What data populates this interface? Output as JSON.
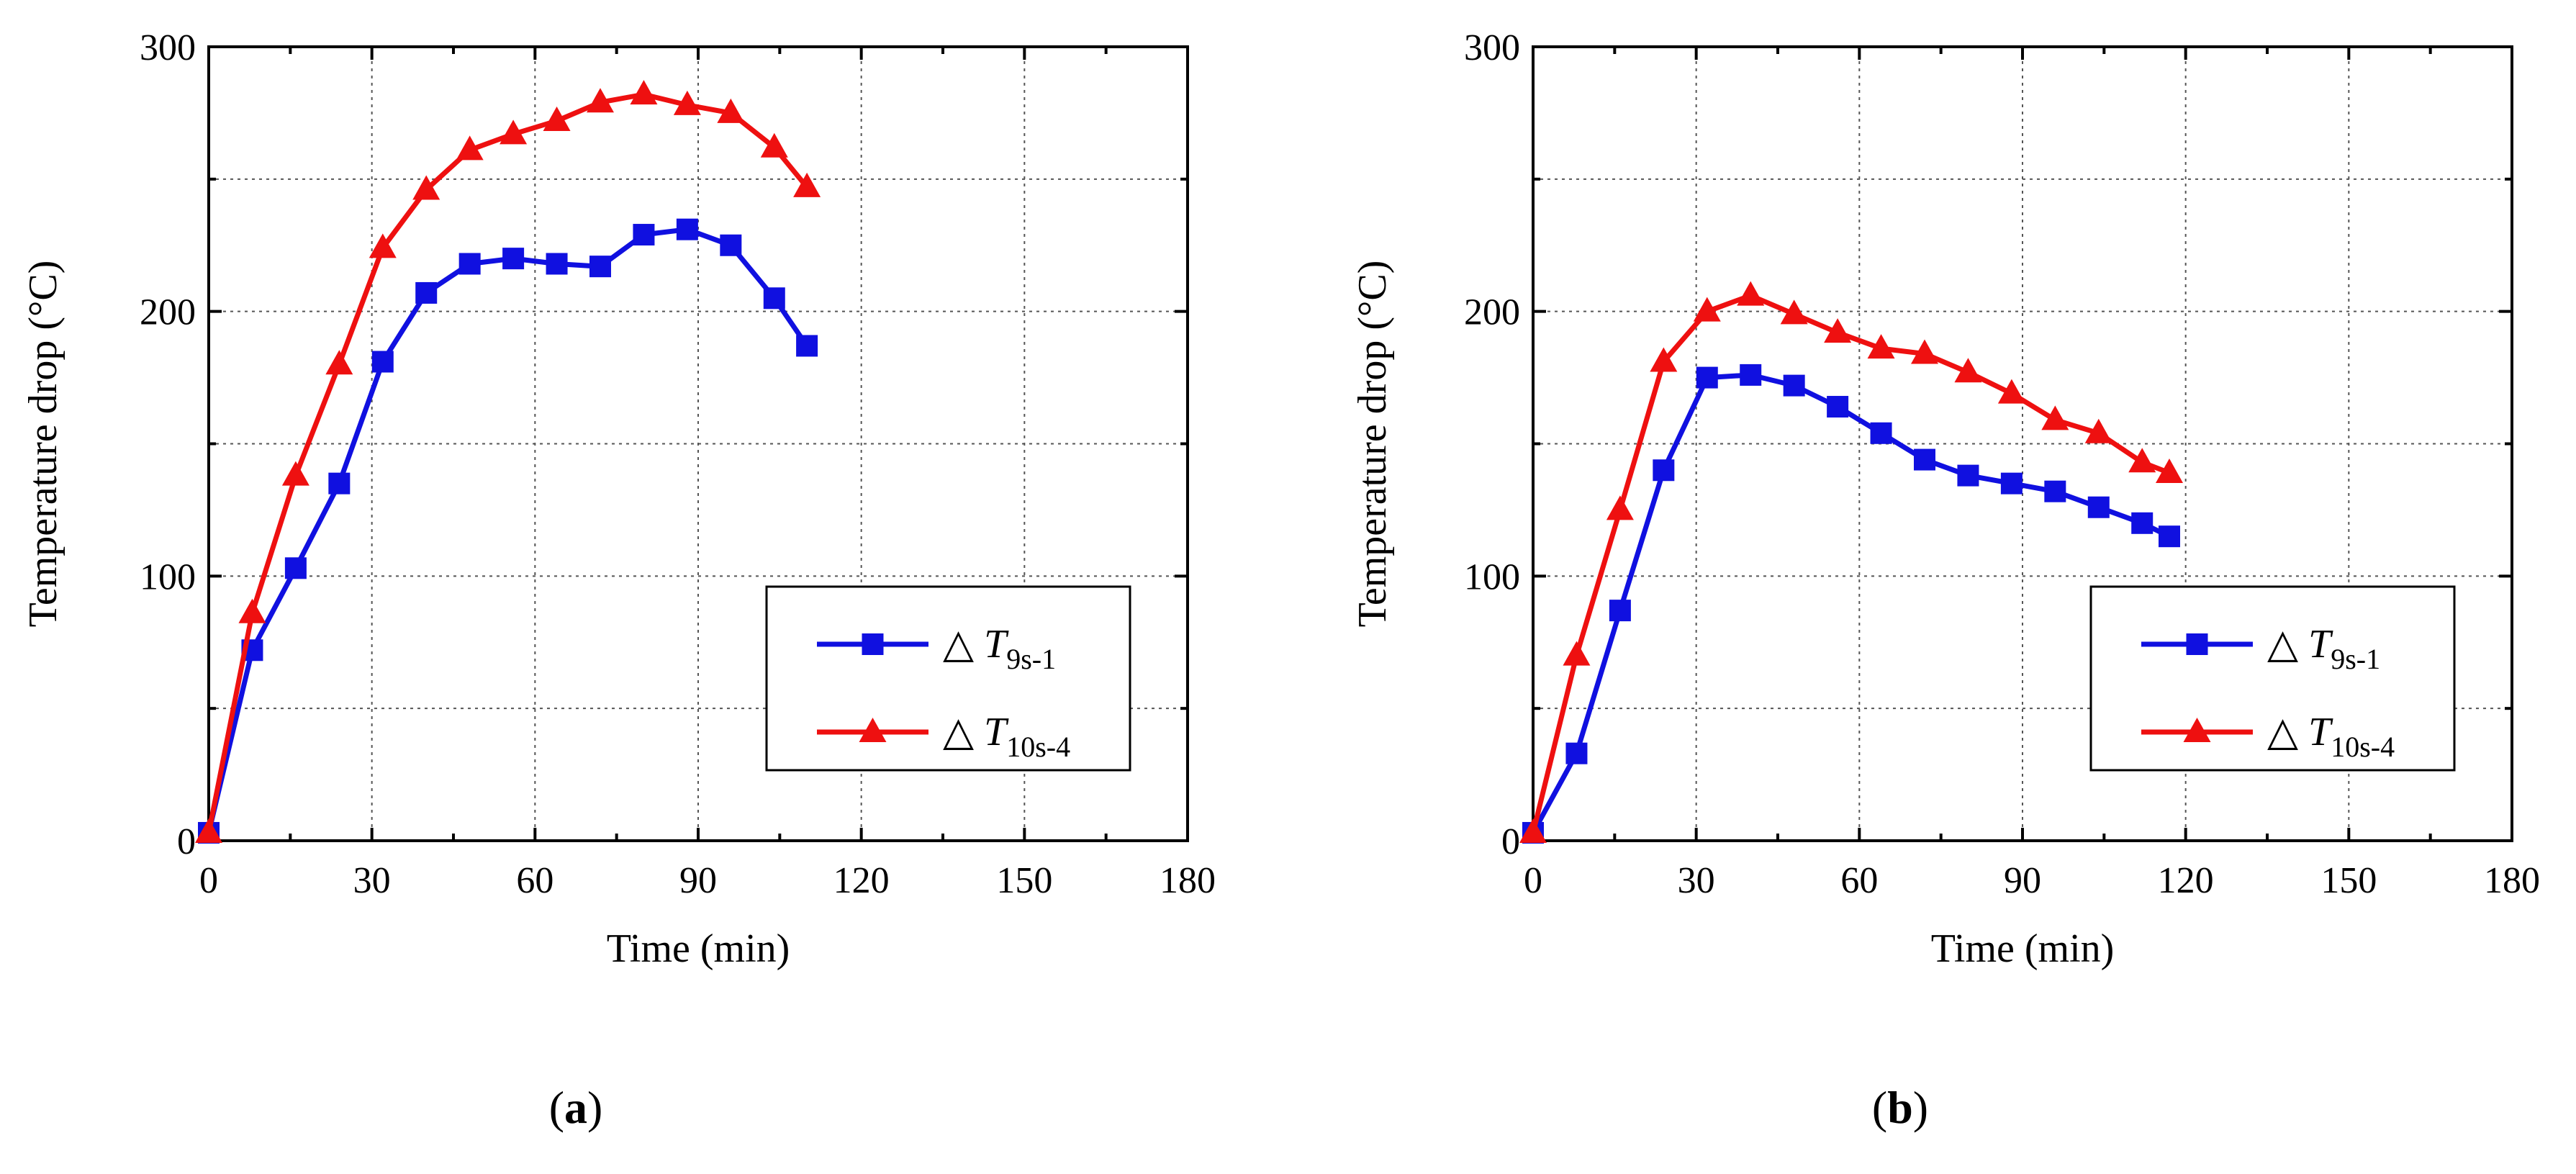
{
  "chart_data": [
    {
      "panel": "(a)",
      "panel_letter": "a",
      "type": "line",
      "title": "",
      "xlabel": "Time (min)",
      "ylabel": "Temperature drop (°C)",
      "xlim": [
        0,
        180
      ],
      "ylim": [
        0,
        300
      ],
      "xticks": [
        0,
        30,
        60,
        90,
        120,
        150,
        180
      ],
      "yticks": [
        0,
        100,
        200,
        300
      ],
      "grid": true,
      "legend_position": "lower-right",
      "series": [
        {
          "name": "△ T9s-1",
          "legend_prefix": "△ ",
          "legend_var": "T",
          "legend_sub": "9s-1",
          "color": "#1010e0",
          "marker": "square",
          "x": [
            0,
            8,
            16,
            24,
            32,
            40,
            48,
            56,
            64,
            72,
            80,
            88,
            96,
            104,
            110
          ],
          "y": [
            3,
            72,
            103,
            135,
            181,
            207,
            218,
            220,
            218,
            217,
            229,
            231,
            225,
            205,
            187
          ]
        },
        {
          "name": "△ T10s-4",
          "legend_prefix": "△ ",
          "legend_var": "T",
          "legend_sub": "10s-4",
          "color": "#ee1010",
          "marker": "triangle",
          "x": [
            0,
            8,
            16,
            24,
            32,
            40,
            48,
            56,
            64,
            72,
            80,
            88,
            96,
            104,
            110
          ],
          "y": [
            3,
            86,
            138,
            180,
            224,
            246,
            261,
            267,
            272,
            279,
            282,
            278,
            275,
            262,
            247
          ]
        }
      ]
    },
    {
      "panel": "(b)",
      "panel_letter": "b",
      "type": "line",
      "title": "",
      "xlabel": "Time (min)",
      "ylabel": "Temperature drop (°C)",
      "xlim": [
        0,
        180
      ],
      "ylim": [
        0,
        300
      ],
      "xticks": [
        0,
        30,
        60,
        90,
        120,
        150,
        180
      ],
      "yticks": [
        0,
        100,
        200,
        300
      ],
      "grid": true,
      "legend_position": "lower-right",
      "series": [
        {
          "name": "△ T9s-1",
          "legend_prefix": "△ ",
          "legend_var": "T",
          "legend_sub": "9s-1",
          "color": "#1010e0",
          "marker": "square",
          "x": [
            0,
            8,
            16,
            24,
            32,
            40,
            48,
            56,
            64,
            72,
            80,
            88,
            96,
            104,
            112,
            117
          ],
          "y": [
            3,
            33,
            87,
            140,
            175,
            176,
            172,
            164,
            154,
            144,
            138,
            135,
            132,
            126,
            120,
            115
          ]
        },
        {
          "name": "△ T10s-4",
          "legend_prefix": "△ ",
          "legend_var": "T",
          "legend_sub": "10s-4",
          "color": "#ee1010",
          "marker": "triangle",
          "x": [
            0,
            8,
            16,
            24,
            32,
            40,
            48,
            56,
            64,
            72,
            80,
            88,
            96,
            104,
            112,
            117
          ],
          "y": [
            3,
            70,
            125,
            181,
            200,
            206,
            199,
            192,
            186,
            184,
            177,
            169,
            159,
            154,
            143,
            139
          ]
        }
      ]
    }
  ]
}
